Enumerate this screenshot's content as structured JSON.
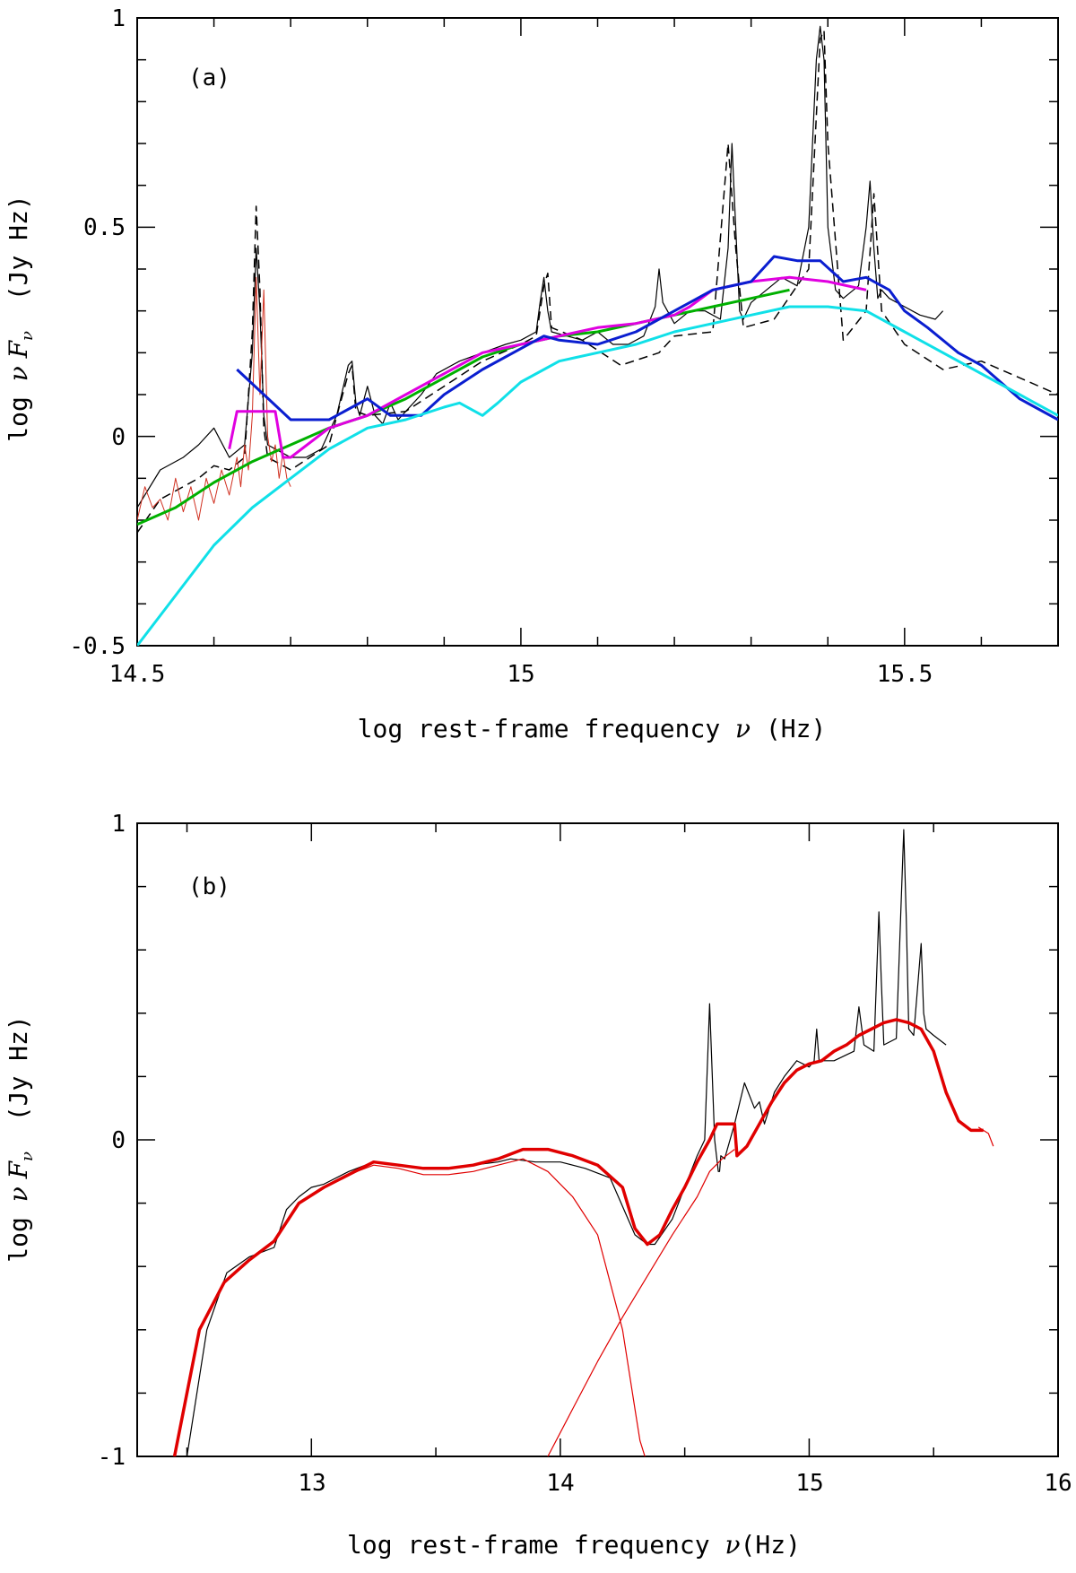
{
  "chart_data": [
    {
      "type": "line",
      "panel_label": "(a)",
      "xlabel_prefix": "log rest-frame frequency ",
      "xlabel_symbol": "ν",
      "xlabel_suffix": " (Hz)",
      "ylabel_prefix": "log ",
      "ylabel_symbol": "ν F",
      "ylabel_sub": "ν",
      "ylabel_suffix": "  (Jy Hz)",
      "xlim": [
        14.5,
        15.7
      ],
      "ylim": [
        -0.5,
        1.0
      ],
      "x_tick_labels": [
        "14.5",
        "15",
        "15.5"
      ],
      "y_tick_labels": [
        "-0.5",
        "0",
        "0.5",
        "1"
      ],
      "series": [
        {
          "color": "#000000",
          "style": "solid",
          "width": 1.2,
          "x": [
            14.5,
            14.53,
            14.56,
            14.58,
            14.6,
            14.62,
            14.64,
            14.65,
            14.655,
            14.66,
            14.665,
            14.67,
            14.68,
            14.7,
            14.72,
            14.74,
            14.76,
            14.775,
            14.78,
            14.785,
            14.79,
            14.8,
            14.81,
            14.82,
            14.83,
            14.84,
            14.85,
            14.87,
            14.89,
            14.92,
            14.95,
            14.98,
            15.0,
            15.02,
            15.025,
            15.03,
            15.035,
            15.04,
            15.06,
            15.08,
            15.1,
            15.12,
            15.14,
            15.16,
            15.175,
            15.18,
            15.185,
            15.2,
            15.22,
            15.24,
            15.26,
            15.27,
            15.275,
            15.28,
            15.285,
            15.29,
            15.3,
            15.32,
            15.34,
            15.36,
            15.375,
            15.385,
            15.39,
            15.395,
            15.4,
            15.41,
            15.42,
            15.44,
            15.45,
            15.455,
            15.46,
            15.465,
            15.47,
            15.48,
            15.5,
            15.52,
            15.54,
            15.55
          ],
          "y": [
            -0.17,
            -0.08,
            -0.05,
            -0.02,
            0.02,
            -0.05,
            -0.02,
            0.2,
            0.45,
            0.3,
            0.05,
            -0.02,
            -0.03,
            -0.05,
            -0.05,
            -0.03,
            0.05,
            0.17,
            0.18,
            0.08,
            0.05,
            0.12,
            0.05,
            0.03,
            0.08,
            0.04,
            0.06,
            0.1,
            0.15,
            0.18,
            0.2,
            0.22,
            0.23,
            0.25,
            0.32,
            0.38,
            0.3,
            0.25,
            0.24,
            0.23,
            0.25,
            0.22,
            0.22,
            0.24,
            0.31,
            0.4,
            0.32,
            0.27,
            0.3,
            0.3,
            0.28,
            0.45,
            0.7,
            0.5,
            0.3,
            0.28,
            0.32,
            0.35,
            0.38,
            0.36,
            0.5,
            0.9,
            0.98,
            0.9,
            0.5,
            0.35,
            0.33,
            0.36,
            0.5,
            0.61,
            0.45,
            0.33,
            0.35,
            0.33,
            0.31,
            0.29,
            0.28,
            0.3
          ]
        },
        {
          "color": "#000000",
          "style": "dashed",
          "width": 1.5,
          "x": [
            14.5,
            14.53,
            14.56,
            14.58,
            14.6,
            14.62,
            14.64,
            14.65,
            14.655,
            14.66,
            14.665,
            14.67,
            14.7,
            14.75,
            14.775,
            14.78,
            14.785,
            14.8,
            14.85,
            14.9,
            14.95,
            15.0,
            15.02,
            15.03,
            15.035,
            15.04,
            15.08,
            15.13,
            15.18,
            15.2,
            15.25,
            15.27,
            15.28,
            15.29,
            15.33,
            15.375,
            15.39,
            15.395,
            15.4,
            15.42,
            15.45,
            15.46,
            15.47,
            15.5,
            15.55,
            15.6,
            15.65,
            15.7
          ],
          "y": [
            -0.23,
            -0.15,
            -0.12,
            -0.1,
            -0.07,
            -0.08,
            -0.05,
            0.25,
            0.55,
            0.35,
            0.02,
            -0.05,
            -0.08,
            -0.02,
            0.15,
            0.17,
            0.06,
            0.05,
            0.06,
            0.12,
            0.18,
            0.22,
            0.24,
            0.36,
            0.39,
            0.26,
            0.23,
            0.17,
            0.2,
            0.24,
            0.25,
            0.7,
            0.45,
            0.26,
            0.28,
            0.4,
            0.95,
            0.97,
            0.7,
            0.23,
            0.3,
            0.58,
            0.3,
            0.22,
            0.16,
            0.18,
            0.14,
            0.1
          ]
        },
        {
          "color": "#d03020",
          "style": "solid",
          "width": 1.0,
          "x": [
            14.5,
            14.51,
            14.52,
            14.53,
            14.54,
            14.55,
            14.56,
            14.57,
            14.58,
            14.59,
            14.6,
            14.61,
            14.62,
            14.63,
            14.635,
            14.64,
            14.645,
            14.65,
            14.655,
            14.66,
            14.665,
            14.67,
            14.675,
            14.68,
            14.685,
            14.69,
            14.695,
            14.7
          ],
          "y": [
            -0.2,
            -0.12,
            -0.17,
            -0.15,
            -0.2,
            -0.1,
            -0.18,
            -0.12,
            -0.2,
            -0.1,
            -0.16,
            -0.08,
            -0.14,
            -0.05,
            -0.12,
            -0.02,
            -0.08,
            0.05,
            0.38,
            0.1,
            0.35,
            0.0,
            -0.06,
            -0.02,
            -0.1,
            -0.04,
            -0.1,
            -0.12
          ]
        },
        {
          "color": "#00b000",
          "style": "solid",
          "width": 3.0,
          "x": [
            14.5,
            14.55,
            14.6,
            14.65,
            14.7,
            14.75,
            14.8,
            14.85,
            14.9,
            14.95,
            15.0,
            15.05,
            15.1,
            15.15,
            15.2,
            15.25,
            15.3,
            15.35
          ],
          "y": [
            -0.21,
            -0.17,
            -0.11,
            -0.06,
            -0.02,
            0.02,
            0.05,
            0.09,
            0.14,
            0.19,
            0.22,
            0.24,
            0.25,
            0.27,
            0.29,
            0.31,
            0.33,
            0.35
          ]
        },
        {
          "color": "#e000e0",
          "style": "solid",
          "width": 3.0,
          "x": [
            14.62,
            14.63,
            14.68,
            14.69,
            14.7,
            14.75,
            14.8,
            14.85,
            14.9,
            14.95,
            15.0,
            15.05,
            15.1,
            15.15,
            15.2,
            15.22,
            15.25,
            15.3,
            15.35,
            15.4,
            15.45
          ],
          "y": [
            -0.03,
            0.06,
            0.06,
            -0.05,
            -0.05,
            0.02,
            0.05,
            0.1,
            0.15,
            0.2,
            0.22,
            0.24,
            0.26,
            0.27,
            0.29,
            0.31,
            0.35,
            0.37,
            0.38,
            0.37,
            0.35
          ]
        },
        {
          "color": "#0a1ed0",
          "style": "solid",
          "width": 3.0,
          "x": [
            14.63,
            14.7,
            14.75,
            14.8,
            14.83,
            14.87,
            14.9,
            14.95,
            15.0,
            15.03,
            15.05,
            15.1,
            15.15,
            15.2,
            15.25,
            15.3,
            15.33,
            15.36,
            15.39,
            15.42,
            15.45,
            15.48,
            15.5,
            15.53,
            15.57,
            15.6,
            15.65,
            15.7
          ],
          "y": [
            0.16,
            0.04,
            0.04,
            0.09,
            0.05,
            0.05,
            0.1,
            0.16,
            0.21,
            0.24,
            0.23,
            0.22,
            0.25,
            0.3,
            0.35,
            0.37,
            0.43,
            0.42,
            0.42,
            0.37,
            0.38,
            0.35,
            0.3,
            0.26,
            0.2,
            0.17,
            0.09,
            0.04
          ]
        },
        {
          "color": "#10e0e8",
          "style": "solid",
          "width": 3.0,
          "x": [
            14.5,
            14.55,
            14.6,
            14.65,
            14.7,
            14.75,
            14.8,
            14.85,
            14.9,
            14.92,
            14.95,
            14.97,
            15.0,
            15.05,
            15.1,
            15.15,
            15.2,
            15.25,
            15.3,
            15.35,
            15.4,
            15.45,
            15.5,
            15.55,
            15.6,
            15.65,
            15.7
          ],
          "y": [
            -0.5,
            -0.38,
            -0.26,
            -0.17,
            -0.1,
            -0.03,
            0.02,
            0.04,
            0.07,
            0.08,
            0.05,
            0.08,
            0.13,
            0.18,
            0.2,
            0.22,
            0.25,
            0.27,
            0.29,
            0.31,
            0.31,
            0.3,
            0.25,
            0.2,
            0.15,
            0.1,
            0.05
          ]
        }
      ]
    },
    {
      "type": "line",
      "panel_label": "(b)",
      "xlabel_prefix": "log rest-frame frequency ",
      "xlabel_symbol": "ν",
      "xlabel_suffix": "(Hz)",
      "ylabel_prefix": "log ",
      "ylabel_symbol": "ν F",
      "ylabel_sub": "ν",
      "ylabel_suffix": "  (Jy Hz)",
      "xlim": [
        12.3,
        16.0
      ],
      "ylim": [
        -1.0,
        1.0
      ],
      "x_tick_labels": [
        "13",
        "14",
        "15",
        "16"
      ],
      "y_tick_labels": [
        "-1",
        "0",
        "1"
      ],
      "series": [
        {
          "color": "#000000",
          "style": "solid",
          "width": 1.2,
          "x": [
            12.5,
            12.58,
            12.66,
            12.75,
            12.85,
            12.9,
            12.95,
            13.0,
            13.05,
            13.15,
            13.25,
            13.35,
            13.45,
            13.55,
            13.65,
            13.75,
            13.8,
            13.9,
            14.0,
            14.1,
            14.2,
            14.3,
            14.35,
            14.38,
            14.45,
            14.5,
            14.55,
            14.58,
            14.6,
            14.62,
            14.635,
            14.64,
            14.645,
            14.66,
            14.7,
            14.74,
            14.78,
            14.8,
            14.82,
            14.86,
            14.9,
            14.95,
            15.0,
            15.02,
            15.03,
            15.04,
            15.1,
            15.18,
            15.2,
            15.22,
            15.26,
            15.28,
            15.29,
            15.3,
            15.35,
            15.38,
            15.39,
            15.4,
            15.42,
            15.45,
            15.46,
            15.47,
            15.5,
            15.55
          ],
          "y": [
            -1.0,
            -0.6,
            -0.42,
            -0.37,
            -0.34,
            -0.22,
            -0.18,
            -0.15,
            -0.14,
            -0.1,
            -0.07,
            -0.08,
            -0.09,
            -0.09,
            -0.08,
            -0.07,
            -0.06,
            -0.07,
            -0.07,
            -0.09,
            -0.12,
            -0.3,
            -0.33,
            -0.33,
            -0.25,
            -0.15,
            -0.05,
            0.0,
            0.43,
            0.0,
            -0.1,
            -0.1,
            -0.05,
            -0.06,
            0.05,
            0.18,
            0.1,
            0.12,
            0.05,
            0.15,
            0.2,
            0.25,
            0.23,
            0.25,
            0.35,
            0.25,
            0.25,
            0.28,
            0.42,
            0.3,
            0.28,
            0.72,
            0.5,
            0.3,
            0.32,
            0.98,
            0.7,
            0.35,
            0.33,
            0.62,
            0.4,
            0.35,
            0.33,
            0.3
          ]
        },
        {
          "color": "#e00000",
          "style": "solid",
          "width": 3.5,
          "x": [
            12.45,
            12.55,
            12.65,
            12.75,
            12.85,
            12.95,
            13.05,
            13.15,
            13.25,
            13.35,
            13.45,
            13.55,
            13.65,
            13.75,
            13.85,
            13.95,
            14.05,
            14.15,
            14.25,
            14.3,
            14.35,
            14.4,
            14.45,
            14.5,
            14.55,
            14.6,
            14.63,
            14.64,
            14.7,
            14.71,
            14.75,
            14.8,
            14.85,
            14.9,
            14.95,
            15.0,
            15.05,
            15.1,
            15.15,
            15.2,
            15.25,
            15.3,
            15.35,
            15.4,
            15.45,
            15.5,
            15.55,
            15.6,
            15.65,
            15.7
          ],
          "y": [
            -1.0,
            -0.6,
            -0.45,
            -0.38,
            -0.32,
            -0.2,
            -0.15,
            -0.11,
            -0.07,
            -0.08,
            -0.09,
            -0.09,
            -0.08,
            -0.06,
            -0.03,
            -0.03,
            -0.05,
            -0.08,
            -0.15,
            -0.28,
            -0.33,
            -0.3,
            -0.22,
            -0.15,
            -0.07,
            0.0,
            0.05,
            0.05,
            0.05,
            -0.05,
            -0.02,
            0.05,
            0.12,
            0.18,
            0.22,
            0.24,
            0.25,
            0.28,
            0.3,
            0.33,
            0.35,
            0.37,
            0.38,
            0.37,
            0.35,
            0.28,
            0.15,
            0.06,
            0.03,
            0.03
          ]
        },
        {
          "color": "#e00000",
          "style": "solid",
          "width": 1.2,
          "x": [
            12.45,
            12.55,
            12.65,
            12.75,
            12.85,
            12.95,
            13.05,
            13.15,
            13.25,
            13.35,
            13.45,
            13.55,
            13.65,
            13.75,
            13.85,
            13.95,
            14.05,
            14.15,
            14.2,
            14.25,
            14.28,
            14.3,
            14.32,
            14.34
          ],
          "y": [
            -1.0,
            -0.6,
            -0.45,
            -0.38,
            -0.32,
            -0.2,
            -0.15,
            -0.11,
            -0.08,
            -0.09,
            -0.11,
            -0.11,
            -0.1,
            -0.08,
            -0.06,
            -0.1,
            -0.18,
            -0.3,
            -0.45,
            -0.6,
            -0.75,
            -0.85,
            -0.95,
            -1.0
          ]
        },
        {
          "color": "#e00000",
          "style": "solid",
          "width": 1.2,
          "x": [
            13.95,
            14.05,
            14.15,
            14.25,
            14.35,
            14.45,
            14.55,
            14.6,
            14.65,
            14.7
          ],
          "y": [
            -1.0,
            -0.85,
            -0.7,
            -0.56,
            -0.43,
            -0.3,
            -0.18,
            -0.1,
            -0.06,
            -0.03
          ]
        },
        {
          "color": "#e00000",
          "style": "solid",
          "width": 1.2,
          "x": [
            15.68,
            15.7,
            15.72,
            15.74
          ],
          "y": [
            0.04,
            0.03,
            0.02,
            -0.02
          ]
        }
      ]
    }
  ]
}
